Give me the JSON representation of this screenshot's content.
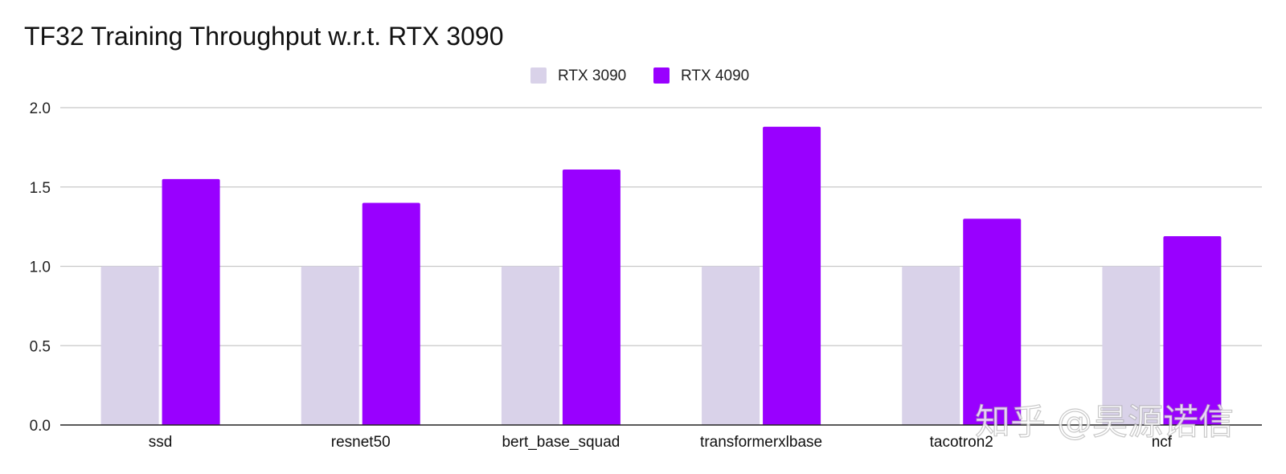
{
  "chart_data": {
    "type": "bar",
    "title": "TF32 Training Throughput w.r.t. RTX 3090",
    "xlabel": "",
    "ylabel": "",
    "ylim": [
      0,
      2.0
    ],
    "yticks": [
      "0.0",
      "0.5",
      "1.0",
      "1.5",
      "2.0"
    ],
    "grid": true,
    "legend_position": "top-center",
    "categories": [
      "ssd",
      "resnet50",
      "bert_base_squad",
      "transformerxlbase",
      "tacotron2",
      "ncf"
    ],
    "series": [
      {
        "name": "RTX 3090",
        "color": "#d9d2e9",
        "values": [
          1.0,
          1.0,
          1.0,
          1.0,
          1.0,
          1.0
        ]
      },
      {
        "name": "RTX 4090",
        "color": "#9900ff",
        "values": [
          1.55,
          1.4,
          1.61,
          1.88,
          1.3,
          1.19
        ]
      }
    ]
  },
  "watermark": "知乎 @昊源诺信"
}
